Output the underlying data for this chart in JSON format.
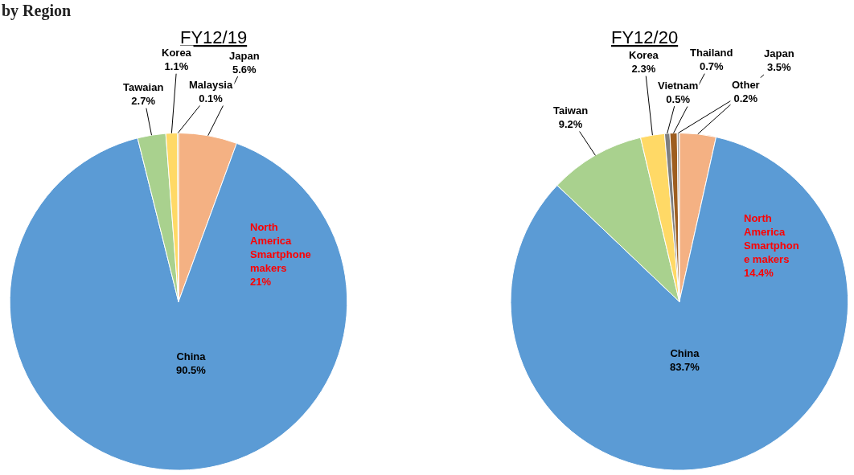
{
  "chart_data": [
    {
      "type": "pie",
      "title": "FY12/19",
      "categories": [
        "Japan",
        "China",
        "Tawaian",
        "Korea",
        "Malaysia"
      ],
      "values": [
        5.6,
        90.5,
        2.7,
        1.1,
        0.1
      ],
      "colors": [
        "#f4b183",
        "#5b9bd5",
        "#a9d18e",
        "#ffd966",
        "#c9a227"
      ],
      "value_labels": [
        "5.6%",
        "90.5%",
        "2.7%",
        "1.1%",
        "0.1%"
      ],
      "annotations": [
        "by Region",
        {
          "text": "North\nAmerica\nSmartphone\nmakers\n21%",
          "x": "China"
        }
      ]
    },
    {
      "type": "pie",
      "title": "FY12/20",
      "categories": [
        "Japan",
        "China",
        "Taiwan",
        "Korea",
        "Vietnam",
        "Thailand",
        "Other"
      ],
      "values": [
        3.5,
        83.7,
        9.2,
        2.3,
        0.5,
        0.7,
        0.2
      ],
      "colors": [
        "#f4b183",
        "#5b9bd5",
        "#a9d18e",
        "#ffd966",
        "#7f7f7f",
        "#9e5e20",
        "#a5a5a5"
      ],
      "value_labels": [
        "3.5%",
        "83.7%",
        "9.2%",
        "2.3%",
        "0.5%",
        "0.7%",
        "0.2%"
      ],
      "annotations": [
        {
          "text": "North\nAmerica\nSmartphon\ne makers\n14.4%",
          "x": "China"
        }
      ]
    }
  ]
}
